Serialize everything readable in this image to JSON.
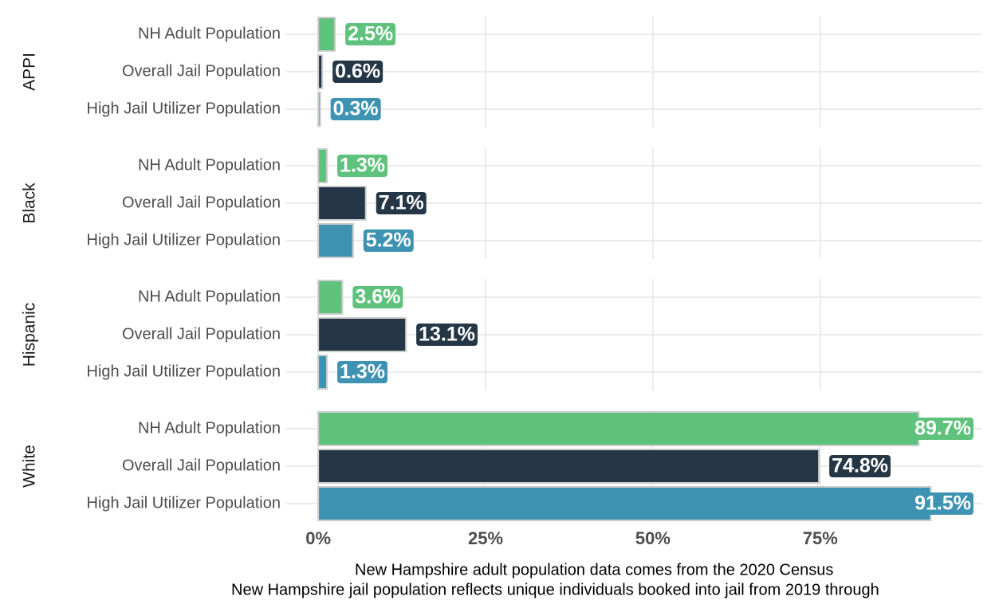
{
  "chart_data": {
    "type": "bar",
    "orientation": "horizontal",
    "categories": [
      "NH Adult Population",
      "Overall Jail Population",
      "High Jail Utilizer Population"
    ],
    "colors": [
      "#5fc27c",
      "#253746",
      "#3f93b2"
    ],
    "facets": [
      {
        "name": "APPI",
        "values": [
          2.5,
          0.6,
          0.3
        ],
        "value_labels": [
          "2.5%",
          "0.6%",
          "0.3%"
        ]
      },
      {
        "name": "Black",
        "values": [
          1.3,
          7.1,
          5.2
        ],
        "value_labels": [
          "1.3%",
          "7.1%",
          "5.2%"
        ]
      },
      {
        "name": "Hispanic",
        "values": [
          3.6,
          13.1,
          1.3
        ],
        "value_labels": [
          "3.6%",
          "13.1%",
          "1.3%"
        ]
      },
      {
        "name": "White",
        "values": [
          89.7,
          74.8,
          91.5
        ],
        "value_labels": [
          "89.7%",
          "74.8%",
          "91.5%"
        ]
      }
    ],
    "xlim": [
      -4.9,
      99.2
    ],
    "xticks": [
      {
        "value": 0,
        "label": "0%"
      },
      {
        "value": 25,
        "label": "25%"
      },
      {
        "value": 50,
        "label": "50%"
      },
      {
        "value": 75,
        "label": "75%"
      }
    ],
    "grid": true,
    "caption": [
      "New Hampshire adult population data comes from the 2020 Census",
      "New Hampshire jail population reflects unique individuals booked into jail from 2019 through"
    ]
  }
}
